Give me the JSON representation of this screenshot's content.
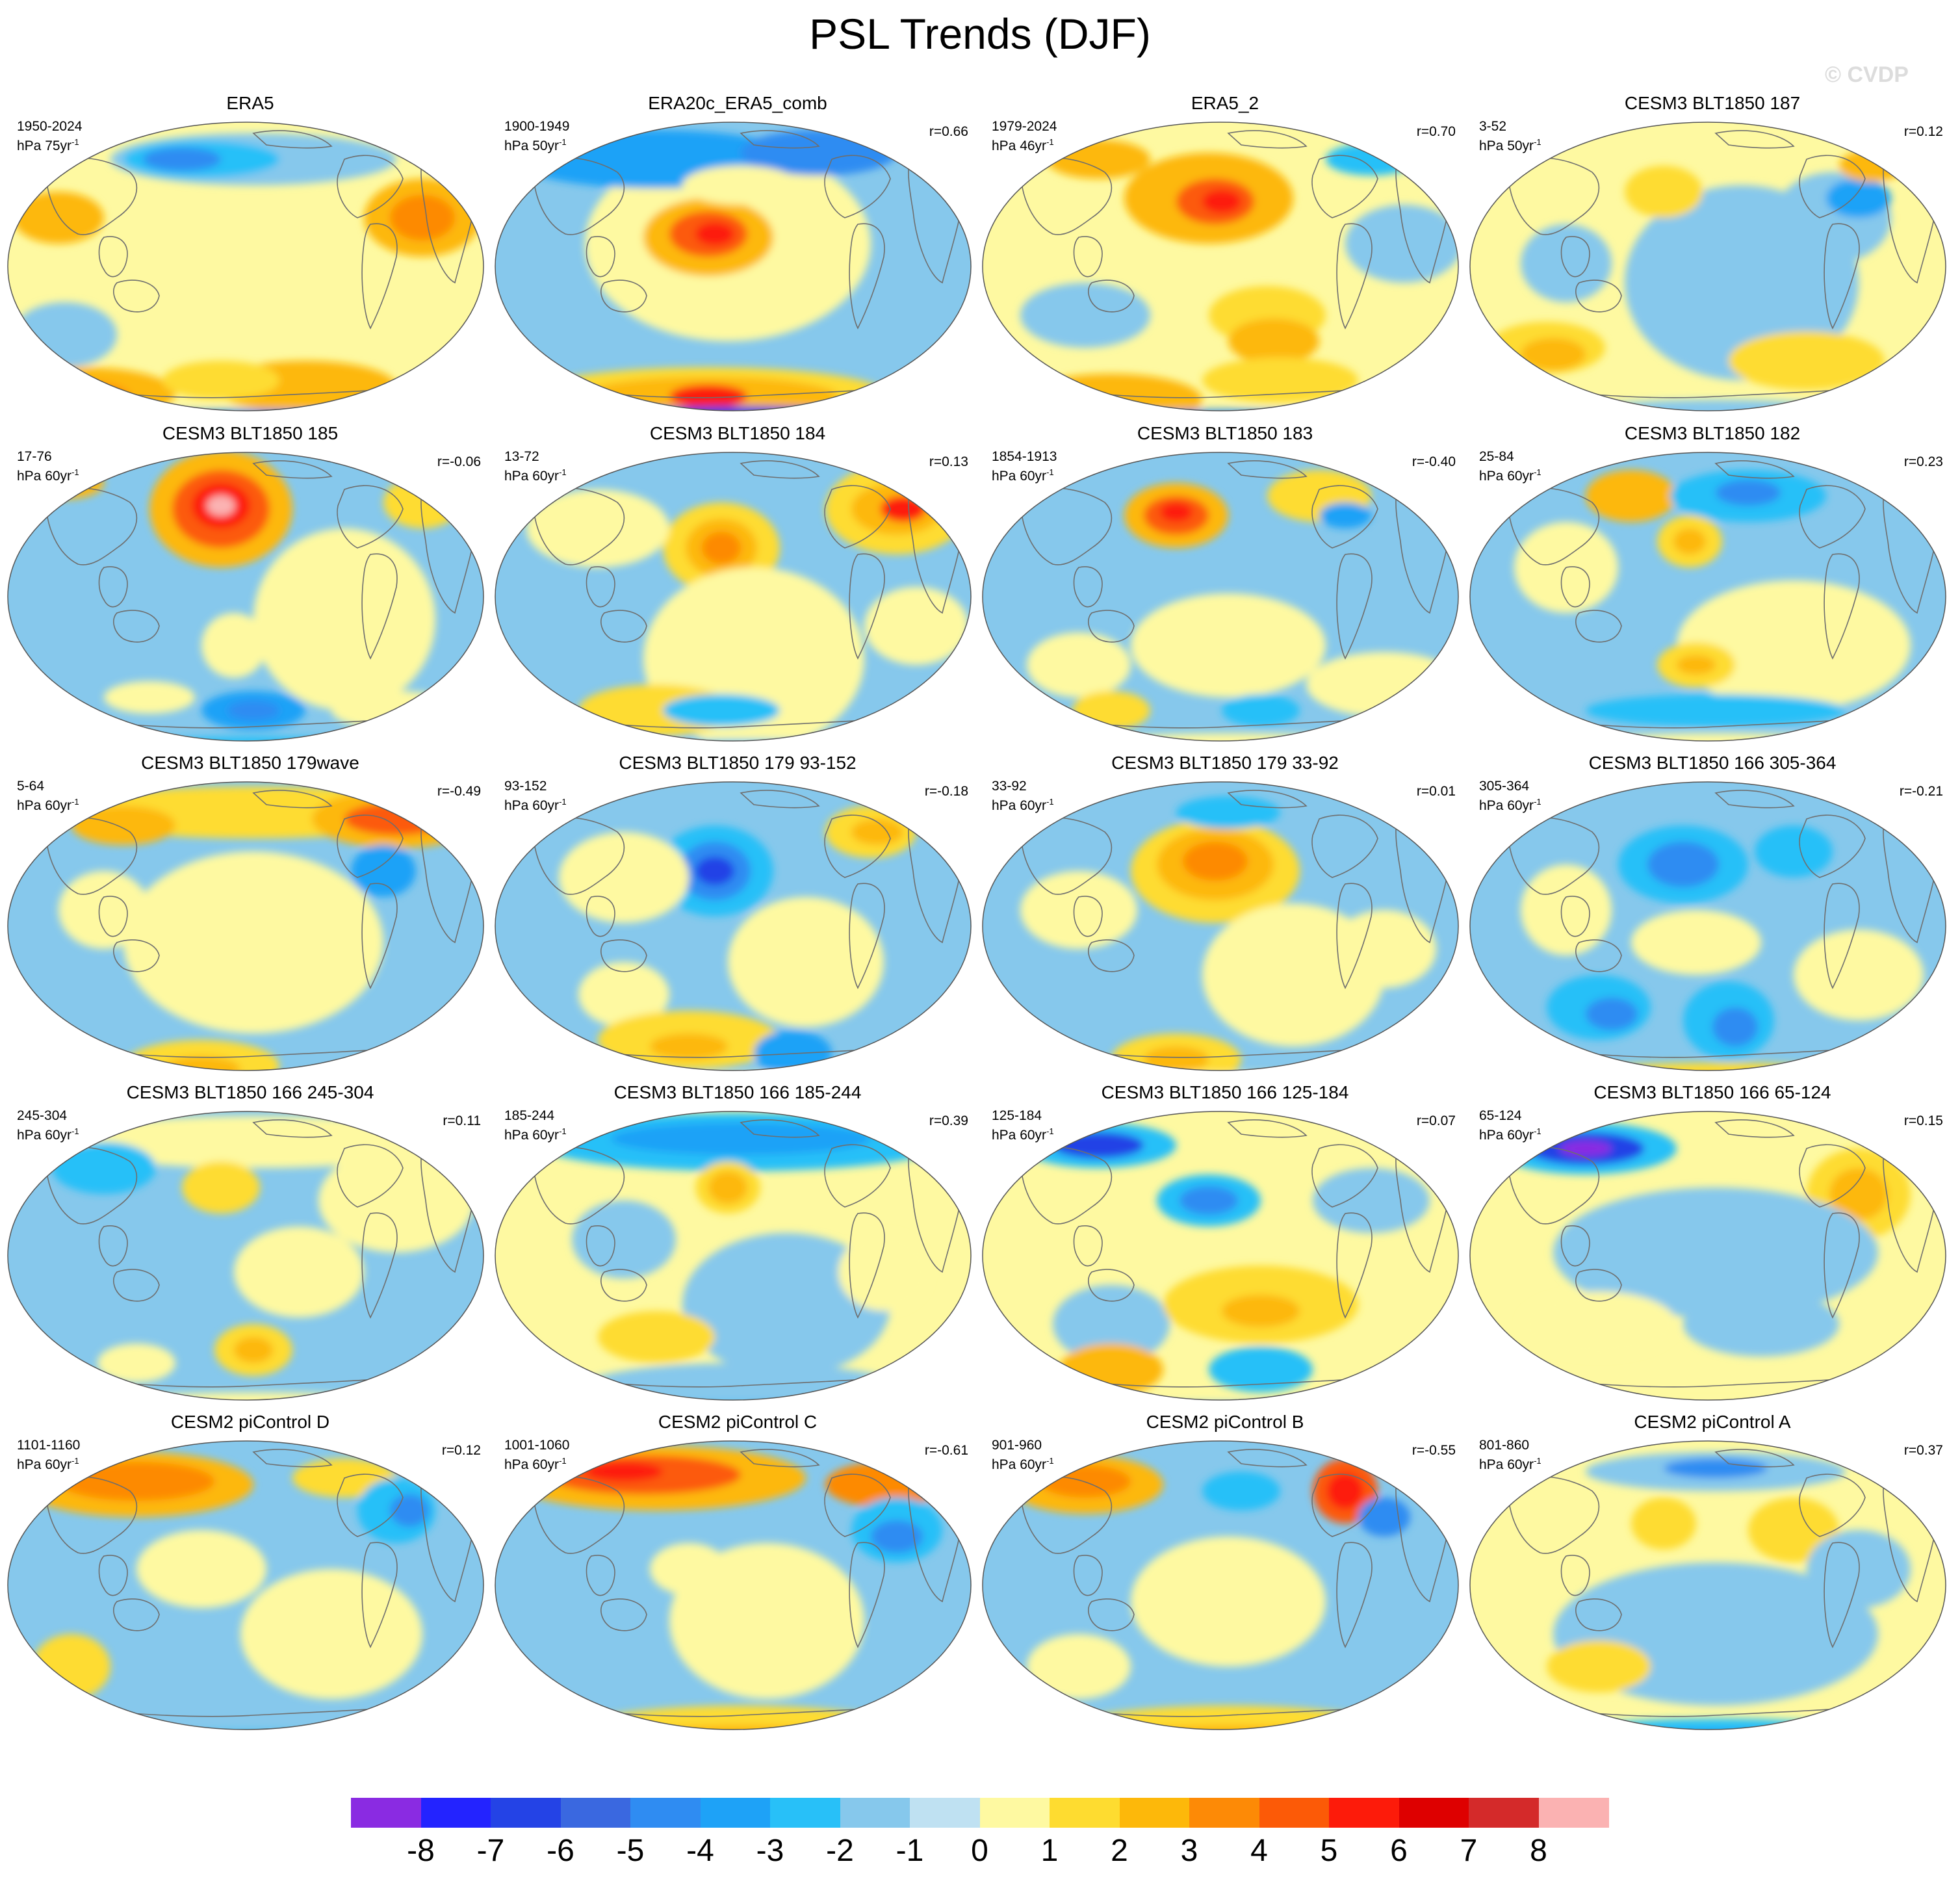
{
  "title": "PSL Trends (DJF)",
  "watermark": "© CVDP",
  "units_prefix": "hPa ",
  "panels": [
    {
      "title": "ERA5",
      "years": "1950-2024",
      "units": "75yr",
      "r": "",
      "pattern": "era5"
    },
    {
      "title": "ERA20c_ERA5_comb",
      "years": "1900-1949",
      "units": "50yr",
      "r": "r=0.66",
      "pattern": "era20c"
    },
    {
      "title": "ERA5_2",
      "years": "1979-2024",
      "units": "46yr",
      "r": "r=0.70",
      "pattern": "era5_2"
    },
    {
      "title": "CESM3 BLT1850 187",
      "years": "3-52",
      "units": "50yr",
      "r": "r=0.12",
      "pattern": "m187"
    },
    {
      "title": "CESM3 BLT1850 185",
      "years": "17-76",
      "units": "60yr",
      "r": "r=-0.06",
      "pattern": "m185"
    },
    {
      "title": "CESM3 BLT1850 184",
      "years": "13-72",
      "units": "60yr",
      "r": "r=0.13",
      "pattern": "m184"
    },
    {
      "title": "CESM3 BLT1850 183",
      "years": "1854-1913",
      "units": "60yr",
      "r": "r=-0.40",
      "pattern": "m183"
    },
    {
      "title": "CESM3 BLT1850 182",
      "years": "25-84",
      "units": "60yr",
      "r": "r=0.23",
      "pattern": "m182"
    },
    {
      "title": "CESM3 BLT1850 179wave",
      "years": "5-64",
      "units": "60yr",
      "r": "r=-0.49",
      "pattern": "m179w"
    },
    {
      "title": "CESM3 BLT1850 179 93-152",
      "years": "93-152",
      "units": "60yr",
      "r": "r=-0.18",
      "pattern": "m179a"
    },
    {
      "title": "CESM3 BLT1850 179 33-92",
      "years": "33-92",
      "units": "60yr",
      "r": "r=0.01",
      "pattern": "m179b"
    },
    {
      "title": "CESM3 BLT1850 166 305-364",
      "years": "305-364",
      "units": "60yr",
      "r": "r=-0.21",
      "pattern": "m166a"
    },
    {
      "title": "CESM3 BLT1850 166 245-304",
      "years": "245-304",
      "units": "60yr",
      "r": "r=0.11",
      "pattern": "m166b"
    },
    {
      "title": "CESM3 BLT1850 166 185-244",
      "years": "185-244",
      "units": "60yr",
      "r": "r=0.39",
      "pattern": "m166c"
    },
    {
      "title": "CESM3 BLT1850 166 125-184",
      "years": "125-184",
      "units": "60yr",
      "r": "r=0.07",
      "pattern": "m166d"
    },
    {
      "title": "CESM3 BLT1850 166 65-124",
      "years": "65-124",
      "units": "60yr",
      "r": "r=0.15",
      "pattern": "m166e"
    },
    {
      "title": "CESM2 piControl D",
      "years": "1101-1160",
      "units": "60yr",
      "r": "r=0.12",
      "pattern": "picD"
    },
    {
      "title": "CESM2 piControl C",
      "years": "1001-1060",
      "units": "60yr",
      "r": "r=-0.61",
      "pattern": "picC"
    },
    {
      "title": "CESM2 piControl B",
      "years": "901-960",
      "units": "60yr",
      "r": "r=-0.55",
      "pattern": "picB"
    },
    {
      "title": "CESM2 piControl A",
      "years": "801-860",
      "units": "60yr",
      "r": "r=0.37",
      "pattern": "picA"
    }
  ],
  "colorbar": {
    "labels": [
      "-8",
      "-7",
      "-6",
      "-5",
      "-4",
      "-3",
      "-2",
      "-1",
      "0",
      "1",
      "2",
      "3",
      "4",
      "5",
      "6",
      "7",
      "8"
    ],
    "colors": [
      "#8a2be2",
      "#2323ff",
      "#2443e6",
      "#3a68e0",
      "#2f8cf2",
      "#1ea2f7",
      "#28c0f8",
      "#86c8ec",
      "#bfe1f2",
      "#fef9a1",
      "#fedc30",
      "#fdb80a",
      "#fd8a06",
      "#fc5a07",
      "#fd1b0a",
      "#de0000",
      "#d42a2a",
      "#fbb2b2"
    ]
  },
  "chart_data": {
    "type": "map-grid",
    "title": "PSL Trends (DJF)",
    "colorbar_levels": [
      -8,
      -7,
      -6,
      -5,
      -4,
      -3,
      -2,
      -1,
      0,
      1,
      2,
      3,
      4,
      5,
      6,
      7,
      8
    ],
    "panels": [
      "ERA5",
      "ERA20c_ERA5_comb",
      "ERA5_2",
      "CESM3 BLT1850 187",
      "CESM3 BLT1850 185",
      "CESM3 BLT1850 184",
      "CESM3 BLT1850 183",
      "CESM3 BLT1850 182",
      "CESM3 BLT1850 179wave",
      "CESM3 BLT1850 179 93-152",
      "CESM3 BLT1850 179 33-92",
      "CESM3 BLT1850 166 305-364",
      "CESM3 BLT1850 166 245-304",
      "CESM3 BLT1850 166 185-244",
      "CESM3 BLT1850 166 125-184",
      "CESM3 BLT1850 166 65-124",
      "CESM2 piControl D",
      "CESM2 piControl C",
      "CESM2 piControl B",
      "CESM2 piControl A"
    ]
  }
}
